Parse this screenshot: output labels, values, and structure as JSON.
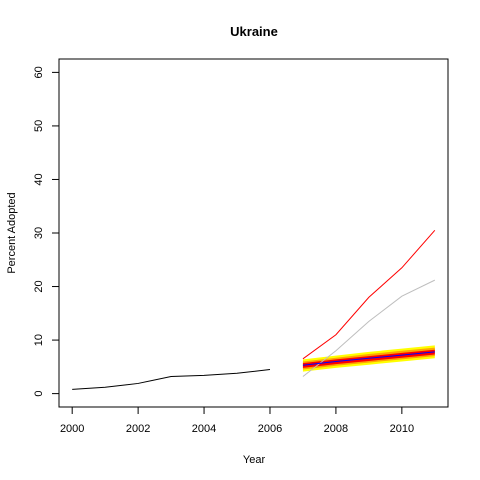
{
  "chart_data": {
    "type": "line",
    "title": "Ukraine",
    "xlabel": "Year",
    "ylabel": "Percent Adopted",
    "xlim": [
      1999.6,
      2011.4
    ],
    "ylim": [
      -2.5,
      62.5
    ],
    "x_ticks": [
      2000,
      2002,
      2004,
      2006,
      2008,
      2010
    ],
    "y_ticks": [
      0,
      10,
      20,
      30,
      40,
      50,
      60
    ],
    "grid": false,
    "colors": {
      "historical": "#000000",
      "forecast": "#0000ff",
      "upper": "#ff0000",
      "alternate": "#bebebe",
      "band_outer": "#ffff00",
      "band_middle": "#ffa500",
      "band_inner": "#ff0000"
    },
    "series": [
      {
        "key": "historical",
        "x": [
          2000,
          2001,
          2002,
          2003,
          2004,
          2005,
          2006
        ],
        "y": [
          0.8,
          1.2,
          1.9,
          3.2,
          3.4,
          3.8,
          4.5
        ]
      },
      {
        "key": "upper",
        "x": [
          2007,
          2008,
          2009,
          2010,
          2011
        ],
        "y": [
          6.5,
          11.0,
          18.0,
          23.5,
          30.5
        ]
      },
      {
        "key": "alternate",
        "x": [
          2007,
          2008,
          2009,
          2010,
          2011
        ],
        "y": [
          3.2,
          8.0,
          13.5,
          18.2,
          21.2
        ]
      },
      {
        "key": "forecast",
        "x": [
          2007,
          2008,
          2009,
          2010,
          2011
        ],
        "y": [
          5.3,
          6.0,
          6.6,
          7.2,
          7.8
        ]
      }
    ],
    "bands": [
      {
        "key": "band_outer",
        "x": [
          2007,
          2008,
          2009,
          2010,
          2011
        ],
        "lower": [
          4.1,
          4.8,
          5.4,
          6.0,
          6.6
        ],
        "upper": [
          6.4,
          7.1,
          7.8,
          8.4,
          9.0
        ]
      },
      {
        "key": "band_middle",
        "x": [
          2007,
          2008,
          2009,
          2010,
          2011
        ],
        "lower": [
          4.5,
          5.2,
          5.8,
          6.4,
          7.0
        ],
        "upper": [
          6.0,
          6.7,
          7.4,
          8.0,
          8.6
        ]
      },
      {
        "key": "band_inner",
        "x": [
          2007,
          2008,
          2009,
          2010,
          2011
        ],
        "lower": [
          4.8,
          5.5,
          6.1,
          6.7,
          7.3
        ],
        "upper": [
          5.7,
          6.4,
          7.0,
          7.6,
          8.2
        ]
      }
    ]
  }
}
